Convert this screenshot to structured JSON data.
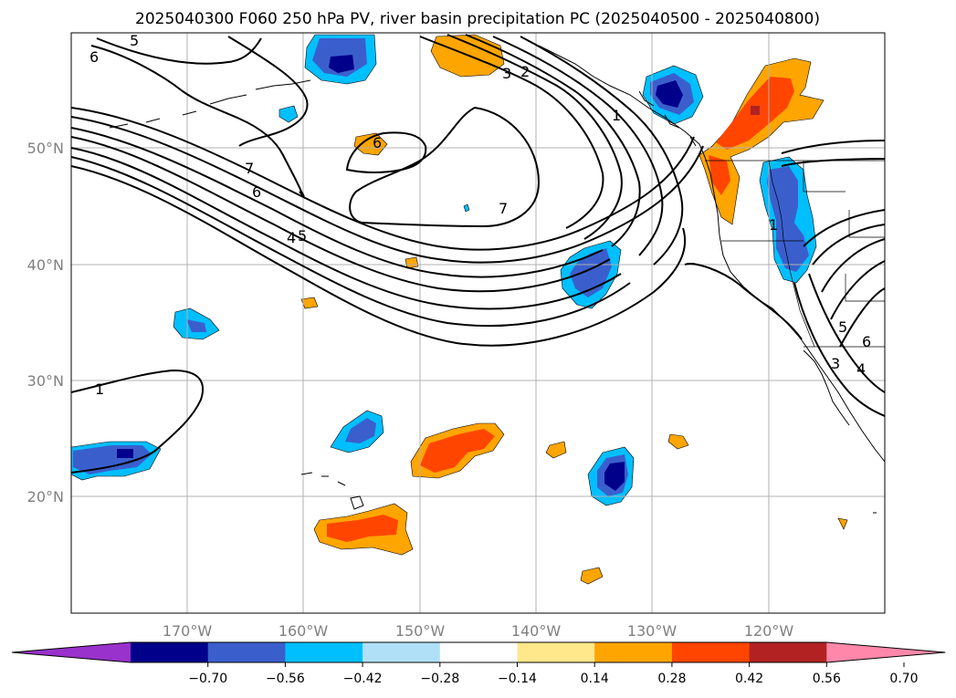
{
  "title": "2025040300 F060 250 hPa PV, river basin precipitation PC (2025040500 - 2025040800)",
  "map": {
    "lon_labels": [
      "170°W",
      "160°W",
      "150°W",
      "140°W",
      "130°W",
      "120°W"
    ],
    "lat_labels": [
      "50°N",
      "40°N",
      "30°N",
      "20°N"
    ],
    "contour_labels": [
      "5",
      "6",
      "7",
      "6",
      "4",
      "5",
      "6",
      "3",
      "2",
      "1",
      "7",
      "1",
      "1",
      "5",
      "6",
      "4",
      "3"
    ],
    "colors": {
      "dark_orange": "#ffa500",
      "orange_red": "#ff4500",
      "firebrick": "#b22222",
      "dark_blue": "#00008b",
      "royal_blue": "#3a5fcd",
      "sky_blue": "#00bfff"
    }
  },
  "colorbar": {
    "tick_labels": [
      "−0.70",
      "−0.56",
      "−0.42",
      "−0.28",
      "−0.14",
      "0.14",
      "0.28",
      "0.42",
      "0.56",
      "0.70"
    ],
    "colors": [
      "#9932cc",
      "#00008b",
      "#3a5fcd",
      "#00bfff",
      "#b0e0f8",
      "#ffffff",
      "#ffe88c",
      "#ffa500",
      "#ff4500",
      "#b22222",
      "#ff88aa"
    ]
  }
}
